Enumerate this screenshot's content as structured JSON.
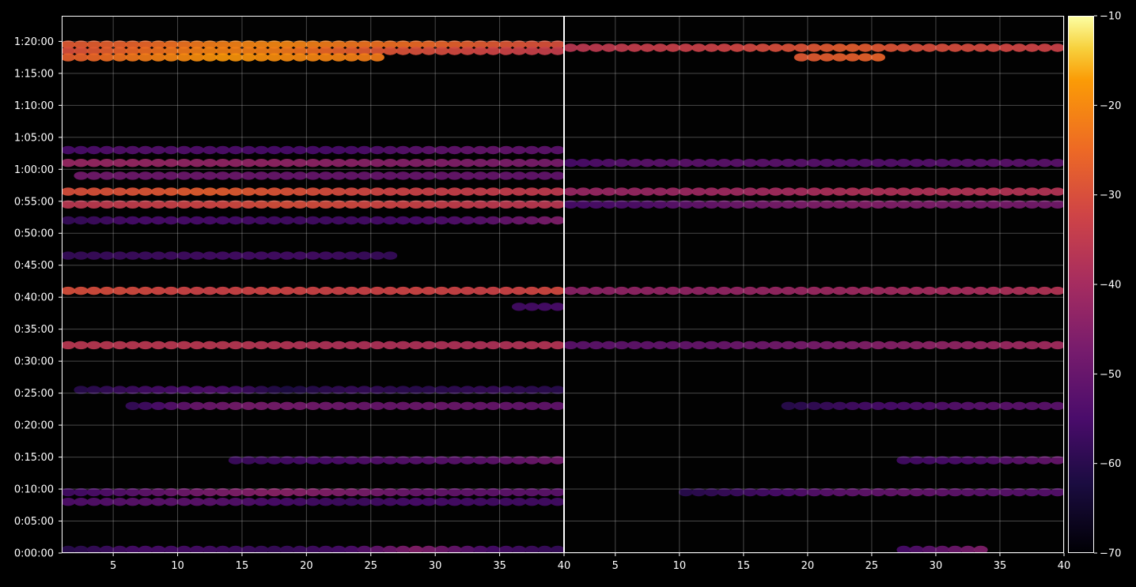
{
  "chart_data": {
    "type": "heatmap",
    "title": "",
    "xlabel": "",
    "ylabel": "",
    "background": "#000000",
    "grid": true,
    "colormap": "inferno",
    "y_ticks": [
      "0:00:00",
      "0:05:00",
      "0:10:00",
      "0:15:00",
      "0:20:00",
      "0:25:00",
      "0:30:00",
      "0:35:00",
      "0:40:00",
      "0:45:00",
      "0:50:00",
      "0:55:00",
      "1:00:00",
      "1:05:00",
      "1:10:00",
      "1:15:00",
      "1:20:00"
    ],
    "ylim_seconds": [
      0,
      5040
    ],
    "panels": [
      {
        "xlim": [
          1,
          40
        ],
        "x_ticks": [
          "5",
          "10",
          "15",
          "20",
          "25",
          "30",
          "35",
          "40"
        ],
        "x_tick_values": [
          5,
          10,
          15,
          20,
          25,
          30,
          35,
          40
        ]
      },
      {
        "xlim": [
          1,
          40
        ],
        "x_ticks": [
          "5",
          "10",
          "15",
          "20",
          "25",
          "30",
          "35",
          "40"
        ],
        "x_tick_values": [
          5,
          10,
          15,
          20,
          25,
          30,
          35,
          40
        ]
      }
    ],
    "colorbar": {
      "range": [
        -70,
        -10
      ],
      "ticks": [
        "−10",
        "−20",
        "−30",
        "−40",
        "−50",
        "−60",
        "−70"
      ],
      "tick_values": [
        -10,
        -20,
        -30,
        -40,
        -50,
        -60,
        -70
      ]
    },
    "series": [
      {
        "panel": 0,
        "y_seconds": 4770,
        "x_range": [
          1,
          39
        ],
        "values": [
          -28,
          -26,
          -22,
          -20,
          -23,
          -25,
          -28,
          -30
        ]
      },
      {
        "panel": 0,
        "y_seconds": 4710,
        "x_range": [
          1,
          39
        ],
        "values": [
          -30,
          -25,
          -21,
          -22,
          -27,
          -30,
          -32,
          -34
        ]
      },
      {
        "panel": 0,
        "y_seconds": 4650,
        "x_range": [
          1,
          25
        ],
        "values": [
          -27,
          -22,
          -18,
          -20,
          -22
        ]
      },
      {
        "panel": 0,
        "y_seconds": 3660,
        "x_range": [
          1,
          39
        ],
        "values": [
          -42,
          -42,
          -43,
          -43,
          -44,
          -45,
          -46,
          -47
        ]
      },
      {
        "panel": 0,
        "y_seconds": 3540,
        "x_range": [
          2,
          39
        ],
        "values": [
          -48,
          -49,
          -49,
          -50,
          -50,
          -50,
          -50,
          -51
        ]
      },
      {
        "panel": 0,
        "y_seconds": 3780,
        "x_range": [
          1,
          39
        ],
        "values": [
          -55,
          -53,
          -54,
          -55,
          -55,
          -52,
          -50,
          -52
        ]
      },
      {
        "panel": 0,
        "y_seconds": 3390,
        "x_range": [
          1,
          39
        ],
        "values": [
          -30,
          -29,
          -27,
          -29,
          -31,
          -33,
          -34,
          -35
        ]
      },
      {
        "panel": 0,
        "y_seconds": 3270,
        "x_range": [
          1,
          39
        ],
        "values": [
          -36,
          -34,
          -32,
          -30,
          -31,
          -33,
          -35,
          -36
        ]
      },
      {
        "panel": 0,
        "y_seconds": 3120,
        "x_range": [
          1,
          39
        ],
        "values": [
          -58,
          -55,
          -55,
          -56,
          -56,
          -55,
          -52,
          -46
        ]
      },
      {
        "panel": 0,
        "y_seconds": 2460,
        "x_range": [
          1,
          39
        ],
        "values": [
          -30,
          -31,
          -33,
          -32,
          -33,
          -32,
          -33,
          -31
        ]
      },
      {
        "panel": 0,
        "y_seconds": 2790,
        "x_range": [
          1,
          26
        ],
        "values": [
          -58,
          -57,
          -56,
          -56,
          -58
        ]
      },
      {
        "panel": 0,
        "y_seconds": 2310,
        "x_range": [
          36,
          39
        ],
        "values": [
          -56,
          -55
        ]
      },
      {
        "panel": 0,
        "y_seconds": 1950,
        "x_range": [
          1,
          39
        ],
        "values": [
          -36,
          -36,
          -36,
          -37,
          -38,
          -38,
          -38,
          -37
        ]
      },
      {
        "panel": 0,
        "y_seconds": 1530,
        "x_range": [
          2,
          39
        ],
        "values": [
          -60,
          -56,
          -54,
          -62,
          -58,
          -60,
          -58,
          -60
        ]
      },
      {
        "panel": 0,
        "y_seconds": 1380,
        "x_range": [
          6,
          39
        ],
        "values": [
          -58,
          -50,
          -47,
          -48,
          -50,
          -49,
          -50,
          -51
        ]
      },
      {
        "panel": 0,
        "y_seconds": 870,
        "x_range": [
          14,
          39
        ],
        "values": [
          -57,
          -55,
          -53,
          -52,
          -48
        ]
      },
      {
        "panel": 0,
        "y_seconds": 570,
        "x_range": [
          1,
          39
        ],
        "values": [
          -56,
          -52,
          -47,
          -44,
          -46,
          -50,
          -51,
          -52
        ]
      },
      {
        "panel": 0,
        "y_seconds": 480,
        "x_range": [
          1,
          39
        ],
        "values": [
          -54,
          -52,
          -52,
          -55,
          -57,
          -55,
          -56,
          -56
        ]
      },
      {
        "panel": 0,
        "y_seconds": 30,
        "x_range": [
          1,
          39
        ],
        "values": [
          -60,
          -55,
          -56,
          -58,
          -55,
          -45,
          -55,
          -58
        ]
      },
      {
        "panel": 1,
        "y_seconds": 4740,
        "x_range": [
          1,
          39
        ],
        "values": [
          -36,
          -34,
          -33,
          -30,
          -27,
          -30,
          -31,
          -33
        ]
      },
      {
        "panel": 1,
        "y_seconds": 4650,
        "x_range": [
          19,
          25
        ],
        "values": [
          -28,
          -26
        ]
      },
      {
        "panel": 1,
        "y_seconds": 3660,
        "x_range": [
          1,
          39
        ],
        "values": [
          -55,
          -52,
          -52,
          -52,
          -53,
          -53,
          -52,
          -52
        ]
      },
      {
        "panel": 1,
        "y_seconds": 3390,
        "x_range": [
          1,
          39
        ],
        "values": [
          -42,
          -42,
          -41,
          -40,
          -38,
          -38,
          -37,
          -37
        ]
      },
      {
        "panel": 1,
        "y_seconds": 3270,
        "x_range": [
          1,
          39
        ],
        "values": [
          -55,
          -54,
          -50,
          -47,
          -45,
          -46,
          -47,
          -48
        ]
      },
      {
        "panel": 1,
        "y_seconds": 2460,
        "x_range": [
          1,
          39
        ],
        "values": [
          -44,
          -43,
          -43,
          -42,
          -41,
          -40,
          -39,
          -37
        ]
      },
      {
        "panel": 1,
        "y_seconds": 1950,
        "x_range": [
          1,
          39
        ],
        "values": [
          -52,
          -51,
          -50,
          -48,
          -46,
          -44,
          -42,
          -40
        ]
      },
      {
        "panel": 1,
        "y_seconds": 1380,
        "x_range": [
          18,
          39
        ],
        "values": [
          -60,
          -56,
          -54,
          -52,
          -52
        ]
      },
      {
        "panel": 1,
        "y_seconds": 870,
        "x_range": [
          27,
          39
        ],
        "values": [
          -56,
          -54,
          -50
        ]
      },
      {
        "panel": 1,
        "y_seconds": 570,
        "x_range": [
          10,
          39
        ],
        "values": [
          -60,
          -56,
          -52,
          -50,
          -52,
          -53
        ]
      },
      {
        "panel": 1,
        "y_seconds": 30,
        "x_range": [
          27,
          33
        ],
        "values": [
          -55,
          -46
        ]
      }
    ]
  }
}
